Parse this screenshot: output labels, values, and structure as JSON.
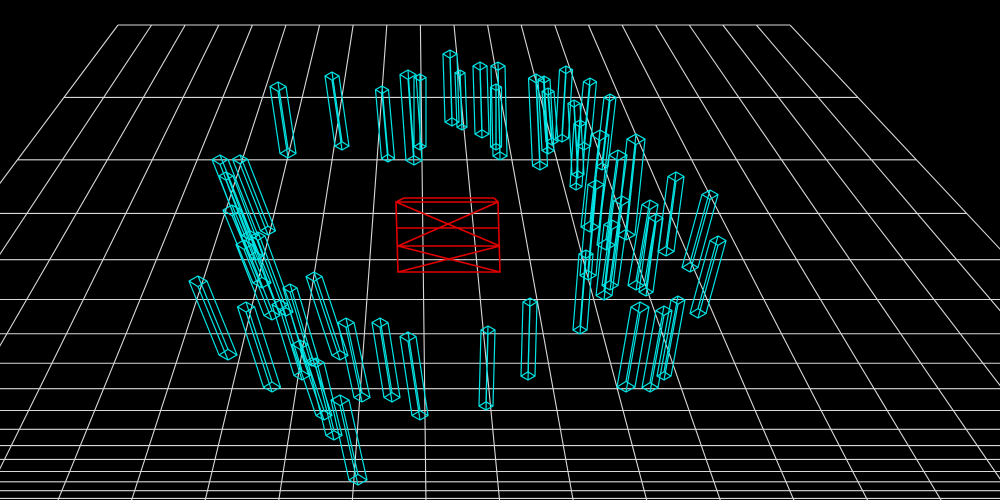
{
  "scene": {
    "background_color": "#000000",
    "grid_color": "#d9d9d9",
    "pillar_color": "#00e5e5",
    "target_box_color": "#e00000",
    "grid_lines_depth": 18,
    "grid_lines_width": 21,
    "pillar_count": 52,
    "target_box_count": 1
  }
}
